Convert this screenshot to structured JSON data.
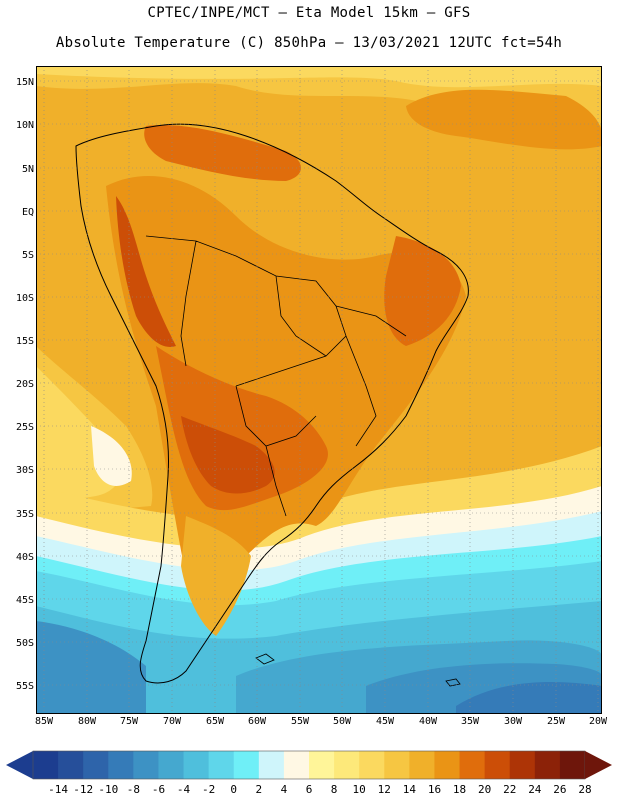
{
  "title_line1": "CPTEC/INPE/MCT –  Eta Model 15km – GFS",
  "title_line2": "Absolute Temperature (C) 850hPa – 13/03/2021 12UTC fct=54h",
  "lat_labels": [
    "15N",
    "10N",
    "5N",
    "EQ",
    "5S",
    "10S",
    "15S",
    "20S",
    "25S",
    "30S",
    "35S",
    "40S",
    "45S",
    "50S",
    "55S"
  ],
  "lon_labels": [
    "85W",
    "80W",
    "75W",
    "70W",
    "65W",
    "60W",
    "55W",
    "50W",
    "45W",
    "40W",
    "35W",
    "30W",
    "25W",
    "20W"
  ],
  "colorbar": {
    "labels": [
      "-14",
      "-12",
      "-10",
      "-8",
      "-6",
      "-4",
      "-2",
      "0",
      "2",
      "4",
      "6",
      "8",
      "10",
      "12",
      "14",
      "16",
      "18",
      "20",
      "22",
      "24",
      "26",
      "28"
    ],
    "colors": [
      "#1c3d8f",
      "#264f9a",
      "#2e64aa",
      "#357bb8",
      "#3d92c4",
      "#45a8cf",
      "#4fbfdc",
      "#5fd6ea",
      "#6feff7",
      "#cff5fb",
      "#fff8e4",
      "#fff599",
      "#fde97a",
      "#fbd95f",
      "#f6c642",
      "#f0b02a",
      "#ea9415",
      "#e06d0c",
      "#cc4e07",
      "#ad3406",
      "#8c2208",
      "#6e160b"
    ]
  },
  "icons": [
    "colorbar-arrow-left-icon",
    "colorbar-arrow-right-icon"
  ]
}
